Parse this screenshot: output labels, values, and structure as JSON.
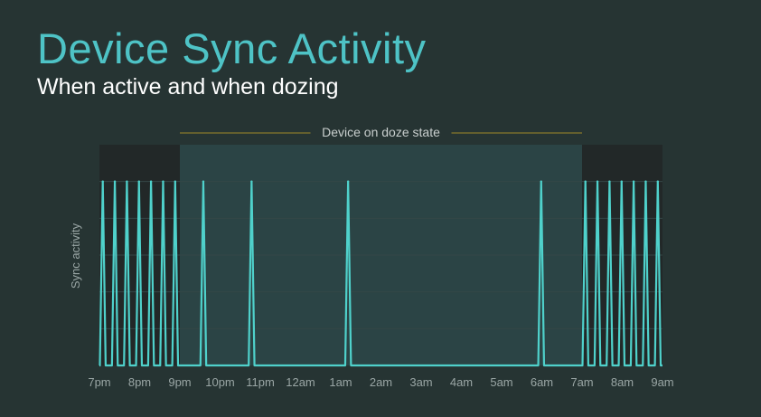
{
  "title": "Device Sync Activity",
  "subtitle": "When active and when dozing",
  "chart_data": {
    "type": "line",
    "ylabel": "Sync activity",
    "xlabel": "",
    "x_ticks": [
      "7pm",
      "8pm",
      "9pm",
      "10pm",
      "11pm",
      "12am",
      "1am",
      "2am",
      "3am",
      "4am",
      "5am",
      "6am",
      "7am",
      "8am",
      "9am"
    ],
    "x_range": [
      "7pm",
      "9am"
    ],
    "y_range": [
      0,
      1.2
    ],
    "grid": true,
    "doze_region": {
      "label": "Device on doze state",
      "start": "9pm",
      "end": "7am",
      "color": "#2b4445"
    },
    "active_region_color": "#222828",
    "series": [
      {
        "color": "#4fd1cb",
        "sync_times": [
          "7:05pm",
          "7:23pm",
          "7:41pm",
          "7:59pm",
          "8:17pm",
          "8:35pm",
          "8:53pm",
          "9:35pm",
          "10:47pm",
          "1:11am",
          "5:59am",
          "7:05am",
          "7:23am",
          "7:41am",
          "7:59am",
          "8:17am",
          "8:35am",
          "8:53am"
        ],
        "peak_value": 1,
        "base_value": 0
      }
    ]
  }
}
